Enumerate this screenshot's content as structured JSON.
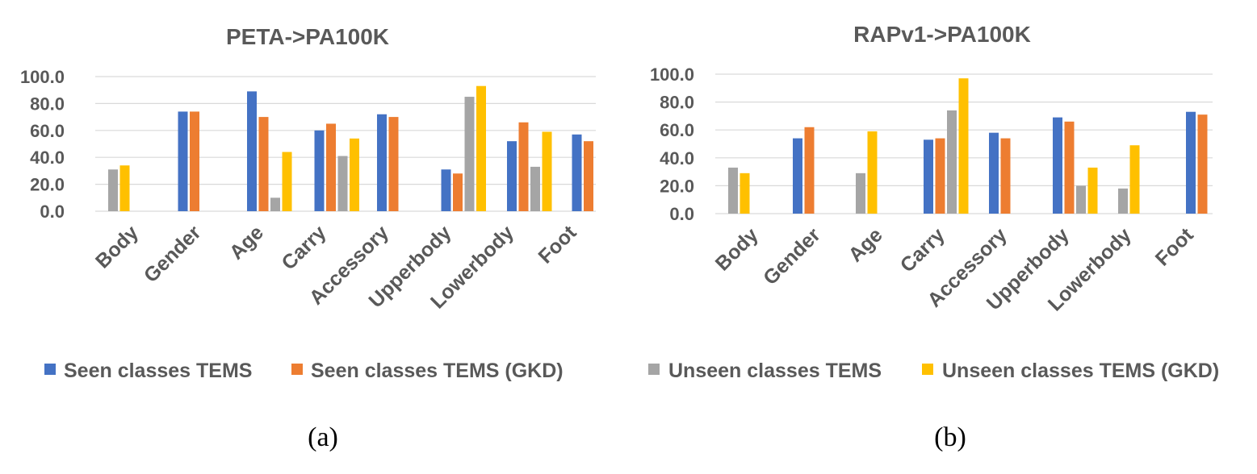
{
  "colors": {
    "seen": "#4472C4",
    "seen_gkd": "#ED7D31",
    "unseen": "#A5A5A5",
    "unseen_gkd": "#FFC000"
  },
  "legend_items": [
    {
      "label": "Seen classes TEMS",
      "color": "#4472C4"
    },
    {
      "label": "Seen classes TEMS (GKD)",
      "color": "#ED7D31"
    },
    {
      "label": "Unseen classes TEMS",
      "color": "#A5A5A5"
    },
    {
      "label": "Unseen classes TEMS (GKD)",
      "color": "#FFC000"
    }
  ],
  "chart_data": [
    {
      "type": "bar",
      "title": "PETA->PA100K",
      "caption": "(a)",
      "categories": [
        "Body",
        "Gender",
        "Age",
        "Carry",
        "Accessory",
        "Upperbody",
        "Lowerbody",
        "Foot"
      ],
      "ylim": [
        0,
        100
      ],
      "yticks": [
        "0.0",
        "20.0",
        "40.0",
        "60.0",
        "80.0",
        "100.0"
      ],
      "series": [
        {
          "name": "Seen classes TEMS",
          "values": [
            null,
            74,
            89,
            60,
            72,
            31,
            52,
            57
          ]
        },
        {
          "name": "Seen classes TEMS (GKD)",
          "values": [
            null,
            74,
            70,
            65,
            70,
            28,
            66,
            52
          ]
        },
        {
          "name": "Unseen classes TEMS",
          "values": [
            31,
            null,
            10,
            41,
            null,
            85,
            33,
            null
          ]
        },
        {
          "name": "Unseen classes TEMS (GKD)",
          "values": [
            34,
            null,
            44,
            54,
            null,
            93,
            59,
            null
          ]
        }
      ]
    },
    {
      "type": "bar",
      "title": "RAPv1->PA100K",
      "caption": "(b)",
      "categories": [
        "Body",
        "Gender",
        "Age",
        "Carry",
        "Accessory",
        "Upperbody",
        "Lowerbody",
        "Foot"
      ],
      "ylim": [
        0,
        100
      ],
      "yticks": [
        "0.0",
        "20.0",
        "40.0",
        "60.0",
        "80.0",
        "100.0"
      ],
      "series": [
        {
          "name": "Seen classes TEMS",
          "values": [
            null,
            54,
            null,
            53,
            58,
            69,
            null,
            73
          ]
        },
        {
          "name": "Seen classes TEMS (GKD)",
          "values": [
            null,
            62,
            null,
            54,
            54,
            66,
            null,
            71
          ]
        },
        {
          "name": "Unseen classes TEMS",
          "values": [
            33,
            null,
            29,
            74,
            null,
            20,
            18,
            null
          ]
        },
        {
          "name": "Unseen classes TEMS (GKD)",
          "values": [
            29,
            null,
            59,
            97,
            null,
            33,
            49,
            null
          ]
        }
      ]
    }
  ]
}
